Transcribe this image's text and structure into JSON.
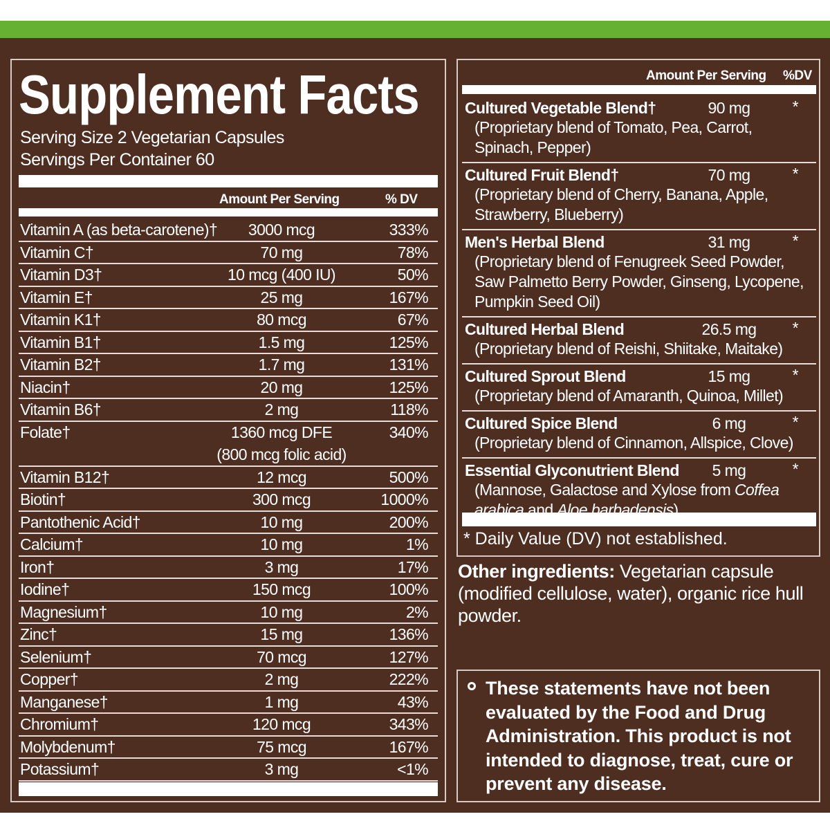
{
  "title": "Supplement Facts",
  "serving_size": "Serving Size 2 Vegetarian Capsules",
  "servings_per_container": "Servings Per Container 60",
  "vitamins_table": {
    "headers": [
      "Amount Per Serving",
      "% DV"
    ],
    "rows": [
      {
        "name": "Vitamin A (as beta-carotene)†",
        "amount": "3000 mcg",
        "dv": "333%"
      },
      {
        "name": "Vitamin C†",
        "amount": "70 mg",
        "dv": "78%"
      },
      {
        "name": "Vitamin D3†",
        "amount": "10 mcg (400 IU)",
        "dv": "50%"
      },
      {
        "name": "Vitamin E†",
        "amount": "25 mg",
        "dv": "167%"
      },
      {
        "name": "Vitamin K1†",
        "amount": "80 mcg",
        "dv": "67%"
      },
      {
        "name": "Vitamin B1†",
        "amount": "1.5 mg",
        "dv": "125%"
      },
      {
        "name": "Vitamin B2†",
        "amount": "1.7 mg",
        "dv": "131%"
      },
      {
        "name": "Niacin†",
        "amount": "20 mg",
        "dv": "125%"
      },
      {
        "name": "Vitamin B6†",
        "amount": "2 mg",
        "dv": "118%"
      },
      {
        "name": "Folate†",
        "amount": "1360 mcg DFE",
        "amount_note": "(800 mcg folic acid)",
        "dv": "340%"
      },
      {
        "name": "Vitamin B12†",
        "amount": "12 mcg",
        "dv": "500%"
      },
      {
        "name": "Biotin†",
        "amount": "300 mcg",
        "dv": "1000%"
      },
      {
        "name": "Pantothenic Acid†",
        "amount": "10 mg",
        "dv": "200%"
      },
      {
        "name": "Calcium†",
        "amount": "10 mg",
        "dv": "1%"
      },
      {
        "name": "Iron†",
        "amount": "3 mg",
        "dv": "17%"
      },
      {
        "name": "Iodine†",
        "amount": "150 mcg",
        "dv": "100%"
      },
      {
        "name": "Magnesium†",
        "amount": "10 mg",
        "dv": "2%"
      },
      {
        "name": "Zinc†",
        "amount": "15 mg",
        "dv": "136%"
      },
      {
        "name": "Selenium†",
        "amount": "70 mcg",
        "dv": "127%"
      },
      {
        "name": "Copper†",
        "amount": "2 mg",
        "dv": "222%"
      },
      {
        "name": "Manganese†",
        "amount": "1 mg",
        "dv": "43%"
      },
      {
        "name": "Chromium†",
        "amount": "120 mcg",
        "dv": "343%"
      },
      {
        "name": "Molybdenum†",
        "amount": "75 mcg",
        "dv": "167%"
      },
      {
        "name": "Potassium†",
        "amount": "3 mg",
        "dv": "<1%"
      }
    ]
  },
  "blends_table": {
    "headers": [
      "Amount Per Serving",
      "%DV"
    ],
    "rows": [
      {
        "name": "Cultured Vegetable Blend†",
        "amount": "90 mg",
        "dv": "*",
        "description": "(Proprietary blend of Tomato, Pea, Carrot, Spinach, Pepper)"
      },
      {
        "name": "Cultured Fruit Blend†",
        "amount": "70 mg",
        "dv": "*",
        "description": "(Proprietary blend of Cherry, Banana, Apple, Strawberry, Blueberry)"
      },
      {
        "name": "Men's Herbal Blend",
        "amount": "31 mg",
        "dv": "*",
        "description": "(Proprietary blend of Fenugreek Seed Powder, Saw Palmetto Berry Powder, Ginseng, Lycopene, Pumpkin Seed Oil)"
      },
      {
        "name": "Cultured Herbal Blend",
        "amount": "26.5 mg",
        "dv": "*",
        "description": "(Proprietary blend of Reishi, Shiitake, Maitake)"
      },
      {
        "name": "Cultured Sprout Blend",
        "amount": "15 mg",
        "dv": "*",
        "description": "(Proprietary blend of Amaranth, Quinoa, Millet)"
      },
      {
        "name": "Cultured Spice Blend",
        "amount": "6 mg",
        "dv": "*",
        "description": "(Proprietary blend of Cinnamon, Allspice, Clove)"
      },
      {
        "name": "Essential Glyconutrient Blend",
        "amount": "5 mg",
        "dv": "*",
        "description": [
          "(Mannose, Galactose and Xylose from ",
          "Coffea arabica",
          " and ",
          "Aloe barbadensis",
          ")"
        ]
      }
    ],
    "footnote": "* Daily Value (DV) not established."
  },
  "other_ingredients": {
    "label": "Other ingredients:",
    "text": " Vegetarian capsule (modified cellulose, water), organic rice hull powder."
  },
  "disclaimer": "These statements have not been evaluated by the Food and Drug Administration. This product is not intended to diagnose, treat, cure or prevent any disease."
}
